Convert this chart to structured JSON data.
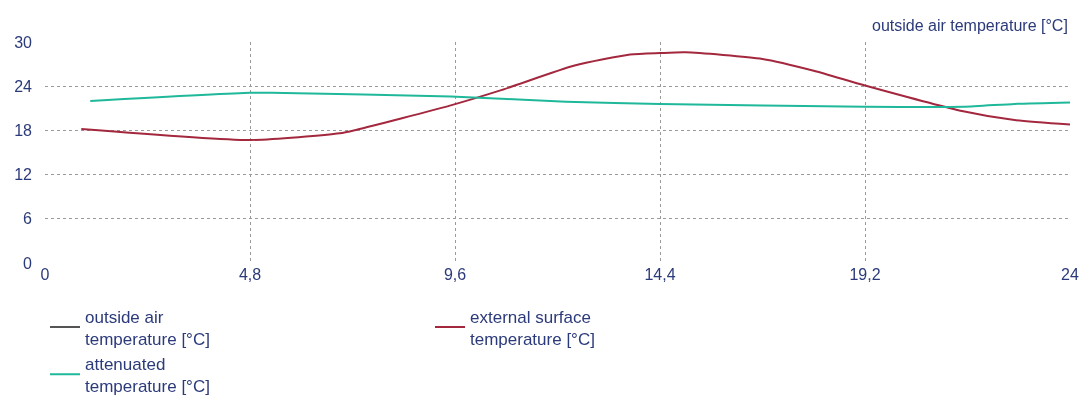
{
  "chart_data": {
    "type": "line",
    "ylabel": "outside air temperature [°C]",
    "xlim": [
      0,
      24
    ],
    "xticks": [
      0,
      {
        "value": 4.8,
        "label": "4,8"
      },
      {
        "value": 9.6,
        "label": "9,6"
      },
      {
        "value": 14.4,
        "label": "14,4"
      },
      {
        "value": 19.2,
        "label": "19,2"
      },
      24
    ],
    "ylim": [
      0,
      30
    ],
    "yticks": [
      0,
      6,
      12,
      18,
      24,
      30
    ],
    "grid": true,
    "legend": "bottom",
    "line_style": "solid",
    "marker": "none",
    "series": [
      {
        "name": "outside air\ntemperature [°C]",
        "color": "#555555",
        "values": [
          null
        ]
      },
      {
        "name": "external surface\ntemperature [°C]",
        "color": "#a3283e",
        "x": [
          0.85,
          4.8,
          6.9,
          7.3,
          9.5,
          10.7,
          12.4,
          13.7,
          14.4,
          15.0,
          16.8,
          18.0,
          19.2,
          21.5,
          22.7,
          24
        ],
        "values": [
          18.2,
          16.7,
          17.6,
          18.1,
          21.4,
          23.5,
          26.8,
          28.3,
          28.5,
          28.6,
          27.7,
          26.1,
          24.1,
          20.6,
          19.4,
          18.8
        ]
      },
      {
        "name": "attenuated\ntemperature [°C]",
        "color": "#1fb89a",
        "x": [
          1.06,
          4.8,
          5.3,
          9.5,
          12.2,
          14.4,
          19.2,
          21.5,
          22.7,
          24
        ],
        "values": [
          22.0,
          23.1,
          23.1,
          22.6,
          21.9,
          21.6,
          21.2,
          21.2,
          21.6,
          21.8
        ]
      }
    ]
  }
}
